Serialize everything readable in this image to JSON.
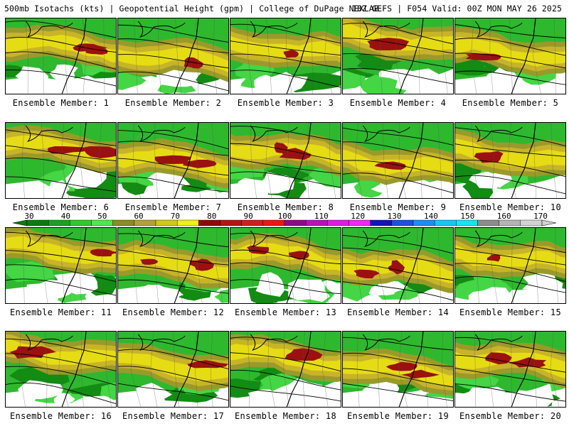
{
  "header": {
    "left": "500mb Isotachs (kts) | Geopotential Height (gpm) | College of DuPage NEXLAB",
    "right": "18Z GEFS | F054 Valid: 00Z MON MAY 26 2025"
  },
  "panels": [
    {
      "label": "Ensemble Member: 1"
    },
    {
      "label": "Ensemble Member: 2"
    },
    {
      "label": "Ensemble Member: 3"
    },
    {
      "label": "Ensemble Member: 4"
    },
    {
      "label": "Ensemble Member: 5"
    },
    {
      "label": "Ensemble Member: 6"
    },
    {
      "label": "Ensemble Member: 7"
    },
    {
      "label": "Ensemble Member: 8"
    },
    {
      "label": "Ensemble Member: 9"
    },
    {
      "label": "Ensemble Member: 10"
    },
    {
      "label": "Ensemble Member: 11"
    },
    {
      "label": "Ensemble Member: 12"
    },
    {
      "label": "Ensemble Member: 13"
    },
    {
      "label": "Ensemble Member: 14"
    },
    {
      "label": "Ensemble Member: 15"
    },
    {
      "label": "Ensemble Member: 16"
    },
    {
      "label": "Ensemble Member: 17"
    },
    {
      "label": "Ensemble Member: 18"
    },
    {
      "label": "Ensemble Member: 19"
    },
    {
      "label": "Ensemble Member: 20"
    }
  ],
  "colorbar": {
    "ticks": [
      "30",
      "40",
      "50",
      "60",
      "70",
      "80",
      "90",
      "100",
      "110",
      "120",
      "130",
      "140",
      "150",
      "160",
      "170"
    ],
    "colors": [
      "#0e7a0e",
      "#1ea01e",
      "#32c832",
      "#50e650",
      "#8c8c28",
      "#b4a03c",
      "#d2c814",
      "#f0f014",
      "#8c0a0a",
      "#b41414",
      "#d21e1e",
      "#f01414",
      "#8c0a8c",
      "#b414b4",
      "#dc1edc",
      "#f028f0",
      "#1414b4",
      "#1e50dc",
      "#1e8cf0",
      "#14c8f0",
      "#14e6f0",
      "#8c8c8c",
      "#b4b4b4",
      "#d2d2d2"
    ]
  }
}
